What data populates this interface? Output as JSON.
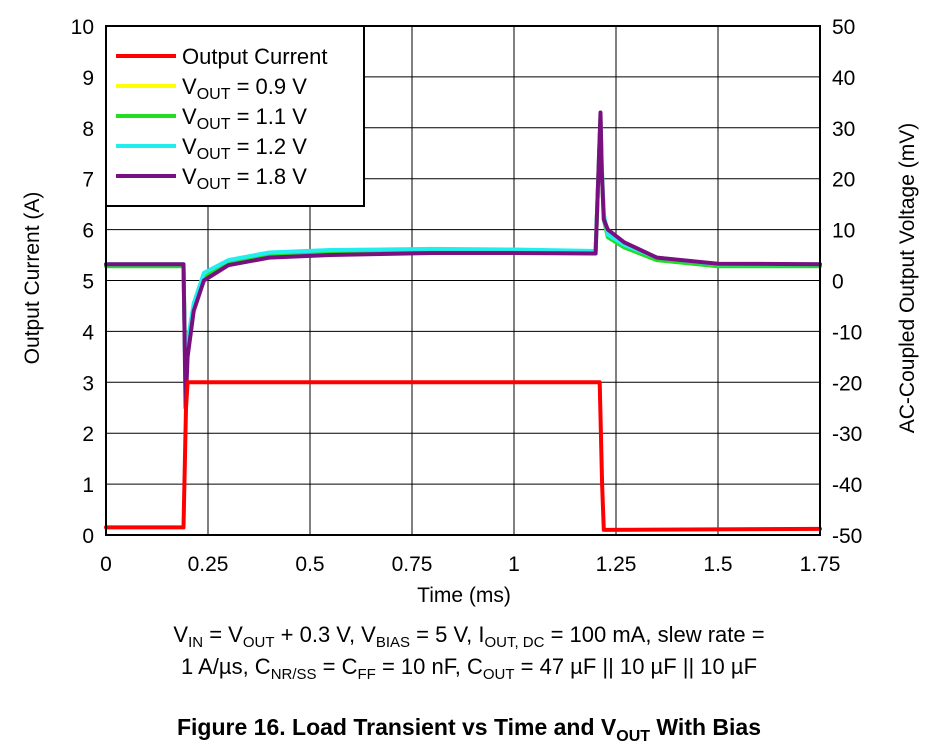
{
  "chart_data": {
    "type": "line",
    "xlabel": "Time (ms)",
    "ylabel_left": "Output Current (A)",
    "ylabel_right": "AC-Coupled Output Voltage (mV)",
    "xlim": [
      0,
      1.75
    ],
    "ylim_left": [
      0,
      10
    ],
    "ylim_right": [
      -50,
      50
    ],
    "x_ticks": [
      "0",
      "0.25",
      "0.5",
      "0.75",
      "1",
      "1.25",
      "1.5",
      "1.75"
    ],
    "y_ticks_left": [
      "0",
      "1",
      "2",
      "3",
      "4",
      "5",
      "6",
      "7",
      "8",
      "9",
      "10"
    ],
    "y_ticks_right": [
      "-50",
      "-40",
      "-30",
      "-20",
      "-10",
      "0",
      "10",
      "20",
      "30",
      "40",
      "50"
    ],
    "grid": true,
    "legend_position": "top-left",
    "series": [
      {
        "name": "Output Current",
        "axis": "left",
        "color": "#ff0000",
        "x": [
          0,
          0.19,
          0.196,
          0.2,
          1.21,
          1.216,
          1.22,
          1.75
        ],
        "y": [
          0.15,
          0.15,
          2.5,
          3.0,
          3.0,
          1.0,
          0.1,
          0.12
        ]
      },
      {
        "name": "VOUT = 0.9 V",
        "axis": "right",
        "color": "#ffff00",
        "x": [
          0,
          0.19,
          0.195,
          0.2,
          0.215,
          0.24,
          0.3,
          0.4,
          0.55,
          0.8,
          1.0,
          1.2,
          1.212,
          1.215,
          1.22,
          1.23,
          1.27,
          1.35,
          1.5,
          1.75
        ],
        "y": [
          3.0,
          3.0,
          -20,
          -13,
          -5,
          0.5,
          3.5,
          5.0,
          5.5,
          5.8,
          5.8,
          5.6,
          32,
          23,
          13,
          9,
          7,
          4.5,
          3.2,
          3.0
        ]
      },
      {
        "name": "VOUT = 1.1 V",
        "axis": "right",
        "color": "#22dd22",
        "x": [
          0,
          0.19,
          0.195,
          0.2,
          0.215,
          0.24,
          0.3,
          0.4,
          0.55,
          0.8,
          1.0,
          1.2,
          1.212,
          1.215,
          1.22,
          1.23,
          1.27,
          1.35,
          1.5,
          1.75
        ],
        "y": [
          2.8,
          2.8,
          -21,
          -13.5,
          -5.5,
          0.5,
          3.5,
          5.0,
          5.5,
          5.8,
          5.8,
          5.6,
          32,
          22,
          12,
          8.5,
          6.5,
          4.0,
          2.8,
          2.8
        ]
      },
      {
        "name": "VOUT = 1.2 V",
        "axis": "right",
        "color": "#22eeee",
        "x": [
          0,
          0.19,
          0.195,
          0.2,
          0.215,
          0.24,
          0.3,
          0.4,
          0.55,
          0.8,
          1.0,
          1.2,
          1.212,
          1.215,
          1.22,
          1.23,
          1.27,
          1.35,
          1.5,
          1.75
        ],
        "y": [
          3.2,
          3.2,
          -22,
          -12,
          -4.5,
          1.5,
          4.0,
          5.5,
          6.0,
          6.2,
          6.1,
          5.8,
          32,
          23,
          13,
          9,
          7,
          4.5,
          3.2,
          3.2
        ]
      },
      {
        "name": "VOUT = 1.8 V",
        "axis": "right",
        "color": "#7a1080",
        "x": [
          0,
          0.19,
          0.195,
          0.2,
          0.215,
          0.24,
          0.3,
          0.4,
          0.55,
          0.8,
          1.0,
          1.2,
          1.212,
          1.215,
          1.22,
          1.23,
          1.27,
          1.35,
          1.5,
          1.75
        ],
        "y": [
          3.2,
          3.2,
          -25,
          -15,
          -6,
          0,
          3.0,
          4.5,
          5.0,
          5.4,
          5.4,
          5.3,
          33,
          22,
          12,
          10,
          7.5,
          4.5,
          3.3,
          3.2
        ]
      }
    ]
  },
  "legend": {
    "output_current": "Output Current",
    "v_prefix": "V",
    "v_sub": "OUT",
    "v09": " = 0.9 V",
    "v11": " = 1.1 V",
    "v12": " = 1.2 V",
    "v18": " = 1.8 V"
  },
  "conditions": {
    "vin_v": "V",
    "vin_sub": "IN",
    "vin_eq": " = V",
    "vout_sub": "OUT",
    "vout_rest": " + 0.3 V, V",
    "vbias_sub": "BIAS",
    "vbias_rest": " = 5 V, I",
    "iout_sub": "OUT, DC",
    "iout_rest": " = 100 mA, slew rate =",
    "line2_start": "1 A/µs, C",
    "cnr_sub": "NR/SS",
    "cnr_rest": " = C",
    "cff_sub": "FF",
    "cff_rest": " = 10 nF, C",
    "cout_sub": "OUT",
    "cout_rest": " = 47 µF || 10 µF || 10 µF"
  },
  "caption": {
    "prefix": "Figure 16. Load Transient vs Time and V",
    "sub": "OUT",
    "suffix": " With Bias"
  }
}
